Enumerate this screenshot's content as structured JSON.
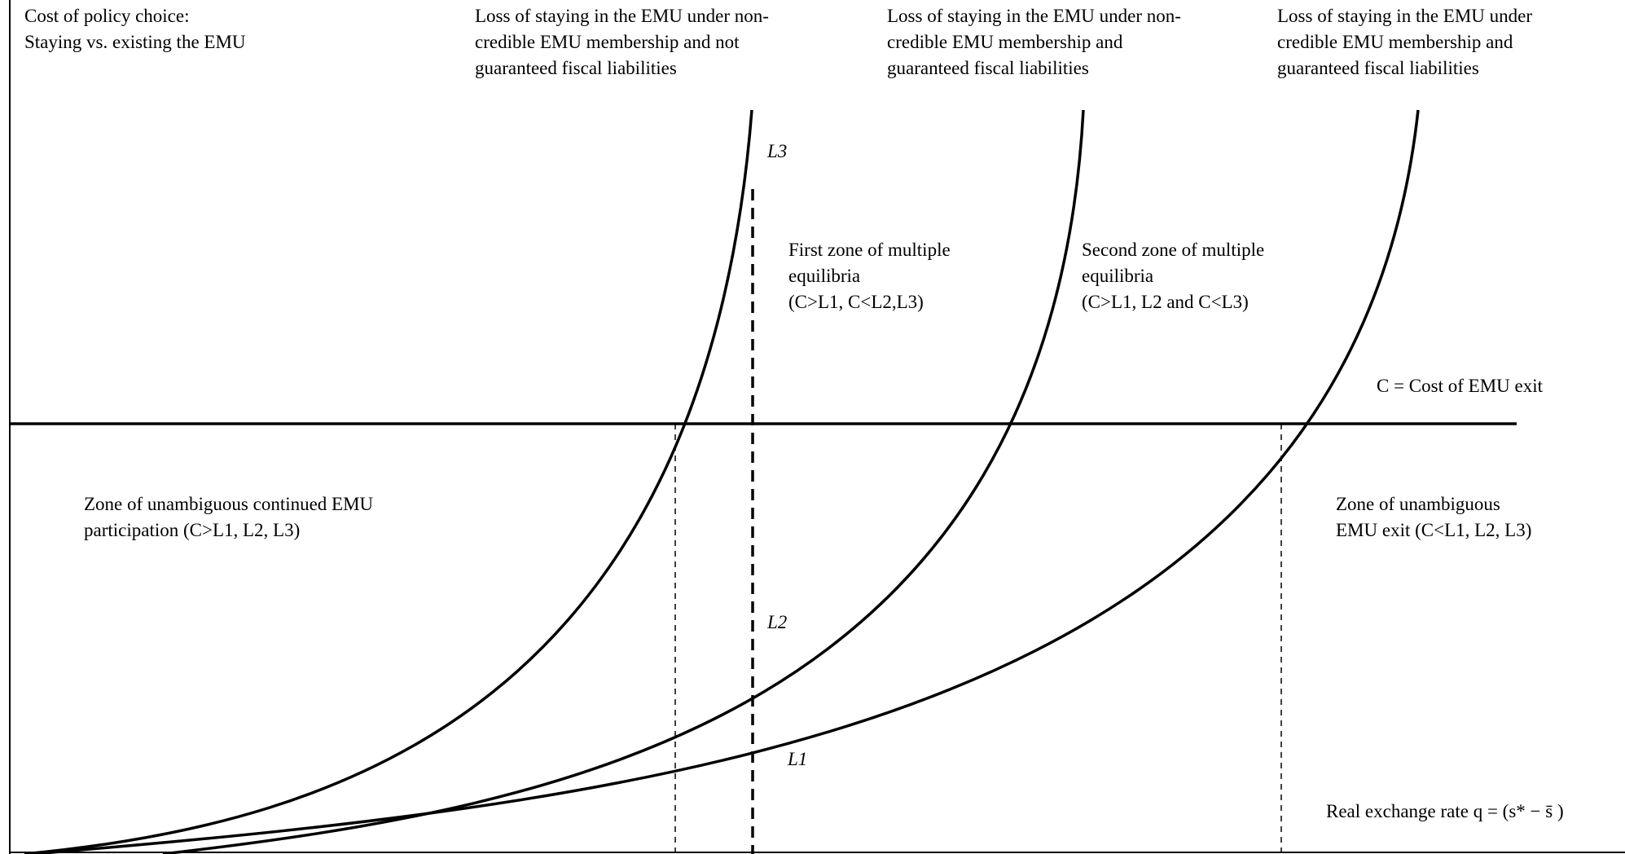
{
  "header": {
    "y_axis_label": [
      "Cost of policy choice:",
      "Staying vs. existing the EMU"
    ],
    "curve_l3_title": [
      "Loss of staying in the EMU under non-",
      "credible EMU membership and not",
      "guaranteed fiscal liabilities"
    ],
    "curve_l2_title": [
      "Loss of staying in the EMU under non-",
      "credible EMU membership and",
      "guaranteed fiscal liabilities"
    ],
    "curve_l1_title": [
      "Loss of staying in the EMU under",
      "credible EMU membership and",
      "guaranteed fiscal liabilities"
    ]
  },
  "curve_labels": {
    "l3": "L3",
    "l2": "L2",
    "l1": "L1"
  },
  "zones": {
    "first_multiple": [
      "First zone of multiple",
      "equilibria",
      "(C>L1, C<L2,L3)"
    ],
    "second_multiple": [
      "Second zone of multiple",
      "equilibria",
      "(C>L1, L2 and C<L3)"
    ],
    "continued": [
      "Zone of unambiguous continued EMU",
      "participation (C>L1, L2, L3)"
    ],
    "exit": [
      "Zone of unambiguous",
      "EMU exit (C<L1, L2, L3)"
    ]
  },
  "cost_line_label": "C = Cost of EMU exit",
  "x_axis_label": "Real exchange rate q = (s* − s̄ )",
  "colors": {
    "ink": "#000000",
    "background": "#ffffff"
  }
}
